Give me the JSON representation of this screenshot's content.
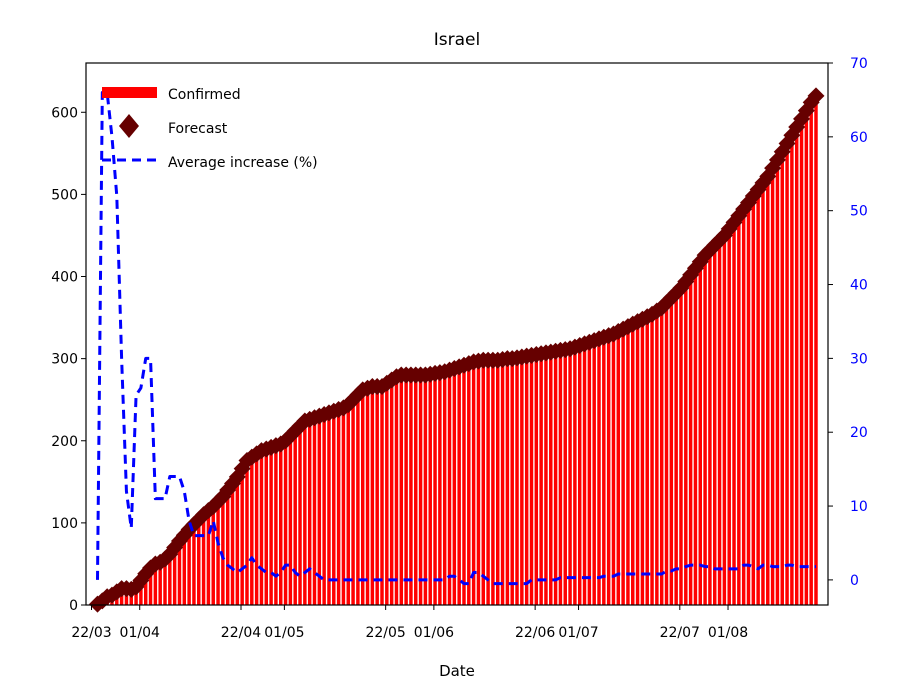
{
  "chart_data": {
    "type": "bar",
    "title": "Israel",
    "xlabel": "Date",
    "ylabel": "",
    "y2label": "",
    "ylim": [
      0,
      660
    ],
    "y2lim": [
      -3.4,
      70
    ],
    "grid": false,
    "legend_position": "top-left",
    "x_tick_labels": [
      "22/03",
      "01/04",
      "22/04",
      "01/05",
      "22/05",
      "01/06",
      "22/06",
      "01/07",
      "22/07",
      "01/08"
    ],
    "y_ticks": [
      "0",
      "100",
      "200",
      "300",
      "400",
      "500",
      "600"
    ],
    "y2_ticks": [
      "0",
      "10",
      "20",
      "30",
      "40",
      "50",
      "60",
      "70"
    ],
    "colors": {
      "confirmed": "#ff0000",
      "forecast": "#660000",
      "average": "#0000ff"
    },
    "series": [
      {
        "name": "Confirmed",
        "type": "bar",
        "x_start": "22/03",
        "values": [
          1,
          5,
          10,
          12,
          16,
          20,
          20,
          19,
          22,
          30,
          38,
          45,
          50,
          52,
          56,
          62,
          70,
          78,
          85,
          92,
          98,
          104,
          110,
          115,
          120,
          126,
          132,
          140,
          148,
          156,
          166,
          176,
          180,
          184,
          188,
          190,
          192,
          194,
          196,
          200,
          206,
          212,
          218,
          224,
          226,
          228,
          230,
          232,
          234,
          236,
          238,
          240,
          244,
          250,
          256,
          262,
          264,
          266,
          266,
          266,
          270,
          274,
          278,
          280,
          280,
          280,
          280,
          280,
          280,
          281,
          282,
          283,
          284,
          286,
          288,
          290,
          292,
          294,
          296,
          297,
          298,
          298,
          298,
          298,
          299,
          300,
          300,
          301,
          302,
          303,
          304,
          305,
          306,
          307,
          308,
          309,
          310,
          311,
          312,
          314,
          316,
          318,
          320,
          322,
          324,
          326,
          328,
          330,
          333,
          336,
          339,
          342,
          345,
          348,
          351,
          354,
          358,
          362,
          368,
          374,
          380,
          386,
          394,
          402,
          410,
          418,
          426,
          432,
          438,
          444,
          450,
          458,
          466,
          474,
          482,
          490,
          498,
          506,
          514,
          522,
          532,
          542,
          552,
          562,
          572,
          582,
          592,
          602,
          612,
          620
        ]
      },
      {
        "name": "Forecast",
        "type": "scatter",
        "x_start": "22/03",
        "values": [
          1,
          5,
          10,
          12,
          16,
          20,
          20,
          19,
          22,
          30,
          38,
          45,
          50,
          52,
          56,
          62,
          70,
          78,
          85,
          92,
          98,
          104,
          110,
          115,
          120,
          126,
          132,
          140,
          148,
          156,
          166,
          176,
          180,
          184,
          188,
          190,
          192,
          194,
          196,
          200,
          206,
          212,
          218,
          224,
          226,
          228,
          230,
          232,
          234,
          236,
          238,
          240,
          244,
          250,
          256,
          262,
          264,
          266,
          266,
          266,
          270,
          274,
          278,
          280,
          280,
          280,
          280,
          280,
          280,
          281,
          282,
          283,
          284,
          286,
          288,
          290,
          292,
          294,
          296,
          297,
          298,
          298,
          298,
          298,
          299,
          300,
          300,
          301,
          302,
          303,
          304,
          305,
          306,
          307,
          308,
          309,
          310,
          311,
          312,
          314,
          316,
          318,
          320,
          322,
          324,
          326,
          328,
          330,
          333,
          336,
          339,
          342,
          345,
          348,
          351,
          354,
          358,
          362,
          368,
          374,
          380,
          386,
          394,
          402,
          410,
          418,
          426,
          432,
          438,
          444,
          450,
          458,
          466,
          474,
          482,
          490,
          498,
          506,
          514,
          522,
          532,
          542,
          552,
          562,
          572,
          582,
          592,
          602,
          612,
          620
        ]
      },
      {
        "name": "Average increase (%)",
        "type": "line",
        "axis": "right",
        "points": [
          [
            1,
            0
          ],
          [
            2,
            66
          ],
          [
            3,
            66
          ],
          [
            4,
            60
          ],
          [
            5,
            52
          ],
          [
            6,
            30
          ],
          [
            7,
            12
          ],
          [
            8,
            7
          ],
          [
            9,
            25
          ],
          [
            10,
            26
          ],
          [
            11,
            30
          ],
          [
            12,
            30
          ],
          [
            13,
            11
          ],
          [
            14,
            11
          ],
          [
            15,
            11
          ],
          [
            16,
            14
          ],
          [
            17,
            14
          ],
          [
            18,
            14
          ],
          [
            19,
            12
          ],
          [
            20,
            8
          ],
          [
            21,
            6
          ],
          [
            22,
            6
          ],
          [
            23,
            6
          ],
          [
            24,
            6
          ],
          [
            25,
            8
          ],
          [
            26,
            5
          ],
          [
            27,
            3
          ],
          [
            28,
            2
          ],
          [
            29,
            1.5
          ],
          [
            30,
            1
          ],
          [
            31,
            1.5
          ],
          [
            32,
            2
          ],
          [
            33,
            3
          ],
          [
            34,
            2
          ],
          [
            35,
            1.5
          ],
          [
            36,
            1
          ],
          [
            37,
            1
          ],
          [
            38,
            0.5
          ],
          [
            39,
            1
          ],
          [
            40,
            2
          ],
          [
            41,
            2
          ],
          [
            42,
            1
          ],
          [
            43,
            0.5
          ],
          [
            44,
            1
          ],
          [
            45,
            1.5
          ],
          [
            46,
            1
          ],
          [
            47,
            0.5
          ],
          [
            48,
            0
          ],
          [
            49,
            0
          ],
          [
            50,
            0
          ],
          [
            51,
            0
          ],
          [
            52,
            0
          ],
          [
            53,
            0
          ],
          [
            54,
            0
          ],
          [
            55,
            0
          ],
          [
            56,
            0
          ],
          [
            57,
            0
          ],
          [
            58,
            0
          ],
          [
            59,
            0
          ],
          [
            60,
            0
          ],
          [
            61,
            0
          ],
          [
            62,
            0
          ],
          [
            63,
            0
          ],
          [
            64,
            0
          ],
          [
            65,
            0
          ],
          [
            66,
            0
          ],
          [
            67,
            0
          ],
          [
            68,
            0
          ],
          [
            69,
            0
          ],
          [
            70,
            0
          ],
          [
            71,
            0
          ],
          [
            72,
            0
          ],
          [
            73,
            0
          ],
          [
            74,
            0.5
          ],
          [
            75,
            0.5
          ],
          [
            76,
            0
          ],
          [
            77,
            -0.5
          ],
          [
            78,
            -0.5
          ],
          [
            79,
            1
          ],
          [
            80,
            1
          ],
          [
            81,
            0.5
          ],
          [
            82,
            0
          ],
          [
            83,
            -0.5
          ],
          [
            84,
            -0.5
          ],
          [
            85,
            -0.5
          ],
          [
            86,
            -0.5
          ],
          [
            87,
            -0.5
          ],
          [
            88,
            -0.5
          ],
          [
            89,
            -0.5
          ],
          [
            90,
            -0.5
          ],
          [
            91,
            0
          ],
          [
            92,
            0
          ],
          [
            93,
            0
          ],
          [
            94,
            0
          ],
          [
            95,
            0
          ],
          [
            96,
            0
          ],
          [
            97,
            0.3
          ],
          [
            98,
            0.3
          ],
          [
            99,
            0.3
          ],
          [
            100,
            0.3
          ],
          [
            101,
            0.3
          ],
          [
            102,
            0.3
          ],
          [
            103,
            0.3
          ],
          [
            104,
            0.3
          ],
          [
            105,
            0.3
          ],
          [
            106,
            0.5
          ],
          [
            107,
            0.5
          ],
          [
            108,
            0.5
          ],
          [
            109,
            0.8
          ],
          [
            110,
            0.8
          ],
          [
            111,
            0.8
          ],
          [
            112,
            0.8
          ],
          [
            113,
            0.8
          ],
          [
            114,
            0.8
          ],
          [
            115,
            0.8
          ],
          [
            116,
            0.8
          ],
          [
            117,
            0.8
          ],
          [
            118,
            0.8
          ],
          [
            119,
            1.2
          ],
          [
            120,
            1.2
          ],
          [
            121,
            1.5
          ],
          [
            122,
            1.5
          ],
          [
            123,
            1.8
          ],
          [
            124,
            2
          ],
          [
            125,
            2
          ],
          [
            126,
            2
          ],
          [
            127,
            1.8
          ],
          [
            128,
            1.8
          ],
          [
            129,
            1.5
          ],
          [
            130,
            1.5
          ],
          [
            131,
            1.5
          ],
          [
            132,
            1.5
          ],
          [
            133,
            1.5
          ],
          [
            134,
            1.5
          ],
          [
            135,
            2
          ],
          [
            136,
            2
          ],
          [
            137,
            1.8
          ],
          [
            138,
            1.5
          ],
          [
            139,
            2
          ],
          [
            140,
            2
          ],
          [
            141,
            1.8
          ],
          [
            142,
            1.8
          ],
          [
            143,
            1.8
          ],
          [
            144,
            2
          ],
          [
            145,
            2
          ],
          [
            146,
            1.8
          ],
          [
            147,
            1.8
          ],
          [
            148,
            1.8
          ],
          [
            149,
            1.8
          ],
          [
            150,
            1.8
          ]
        ]
      }
    ]
  }
}
